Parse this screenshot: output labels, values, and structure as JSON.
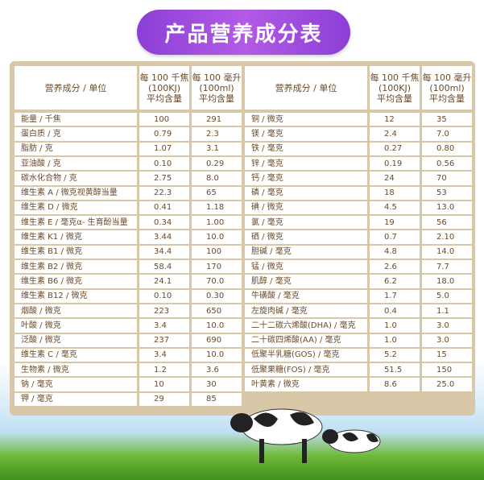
{
  "title": "产品营养成分表",
  "table": {
    "left": {
      "headers": [
        "营养成分 / 单位",
        "每 100 千焦\n(100KJ)\n平均含量",
        "每 100 毫升\n(100ml)\n平均含量"
      ],
      "rows": [
        [
          "能量 / 千焦",
          "100",
          "291"
        ],
        [
          "蛋白质 / 克",
          "0.79",
          "2.3"
        ],
        [
          "脂肪 / 克",
          "1.07",
          "3.1"
        ],
        [
          "亚油酸 / 克",
          "0.10",
          "0.29"
        ],
        [
          "碳水化合物 / 克",
          "2.75",
          "8.0"
        ],
        [
          "维生素 A / 微克视黄醇当量",
          "22.3",
          "65"
        ],
        [
          "维生素 D / 微克",
          "0.41",
          "1.18"
        ],
        [
          "维生素 E / 毫克α- 生育酚当量",
          "0.34",
          "1.00"
        ],
        [
          "维生素 K1 / 微克",
          "3.44",
          "10.0"
        ],
        [
          "维生素 B1 / 微克",
          "34.4",
          "100"
        ],
        [
          "维生素 B2 / 微克",
          "58.4",
          "170"
        ],
        [
          "维生素 B6 / 微克",
          "24.1",
          "70.0"
        ],
        [
          "维生素 B12 / 微克",
          "0.10",
          "0.30"
        ],
        [
          "烟酸 / 微克",
          "223",
          "650"
        ],
        [
          "叶酸 / 微克",
          "3.4",
          "10.0"
        ],
        [
          "泛酸 / 微克",
          "237",
          "690"
        ],
        [
          "维生素 C / 毫克",
          "3.4",
          "10.0"
        ],
        [
          "生物素 / 微克",
          "1.2",
          "3.6"
        ],
        [
          "钠 / 毫克",
          "10",
          "30"
        ],
        [
          "钾 / 毫克",
          "29",
          "85"
        ]
      ]
    },
    "right": {
      "headers": [
        "营养成分 / 单位",
        "每 100 千焦\n(100KJ)\n平均含量",
        "每 100 毫升\n(100ml)\n平均含量"
      ],
      "rows": [
        [
          "铜 / 微克",
          "12",
          "35"
        ],
        [
          "镁 / 毫克",
          "2.4",
          "7.0"
        ],
        [
          "铁 / 毫克",
          "0.27",
          "0.80"
        ],
        [
          "锌 / 毫克",
          "0.19",
          "0.56"
        ],
        [
          "钙 / 毫克",
          "24",
          "70"
        ],
        [
          "磷 / 毫克",
          "18",
          "53"
        ],
        [
          "碘 / 微克",
          "4.5",
          "13.0"
        ],
        [
          "氯 / 毫克",
          "19",
          "56"
        ],
        [
          "硒 / 微克",
          "0.7",
          "2.10"
        ],
        [
          "胆碱 / 毫克",
          "4.8",
          "14.0"
        ],
        [
          "锰 / 微克",
          "2.6",
          "7.7"
        ],
        [
          "肌醇 / 毫克",
          "6.2",
          "18.0"
        ],
        [
          "牛磺酸 / 毫克",
          "1.7",
          "5.0"
        ],
        [
          "左旋肉碱 / 毫克",
          "0.4",
          "1.1"
        ],
        [
          "二十二碳六烯酸(DHA) / 毫克",
          "1.0",
          "3.0"
        ],
        [
          "二十碳四烯酸(AA) / 毫克",
          "1.0",
          "3.0"
        ],
        [
          "低聚半乳糖(GOS) / 毫克",
          "5.2",
          "15"
        ],
        [
          "低聚果糖(FOS) / 毫克",
          "51.5",
          "150"
        ],
        [
          "叶黄素 / 微克",
          "8.6",
          "25.0"
        ]
      ]
    }
  }
}
